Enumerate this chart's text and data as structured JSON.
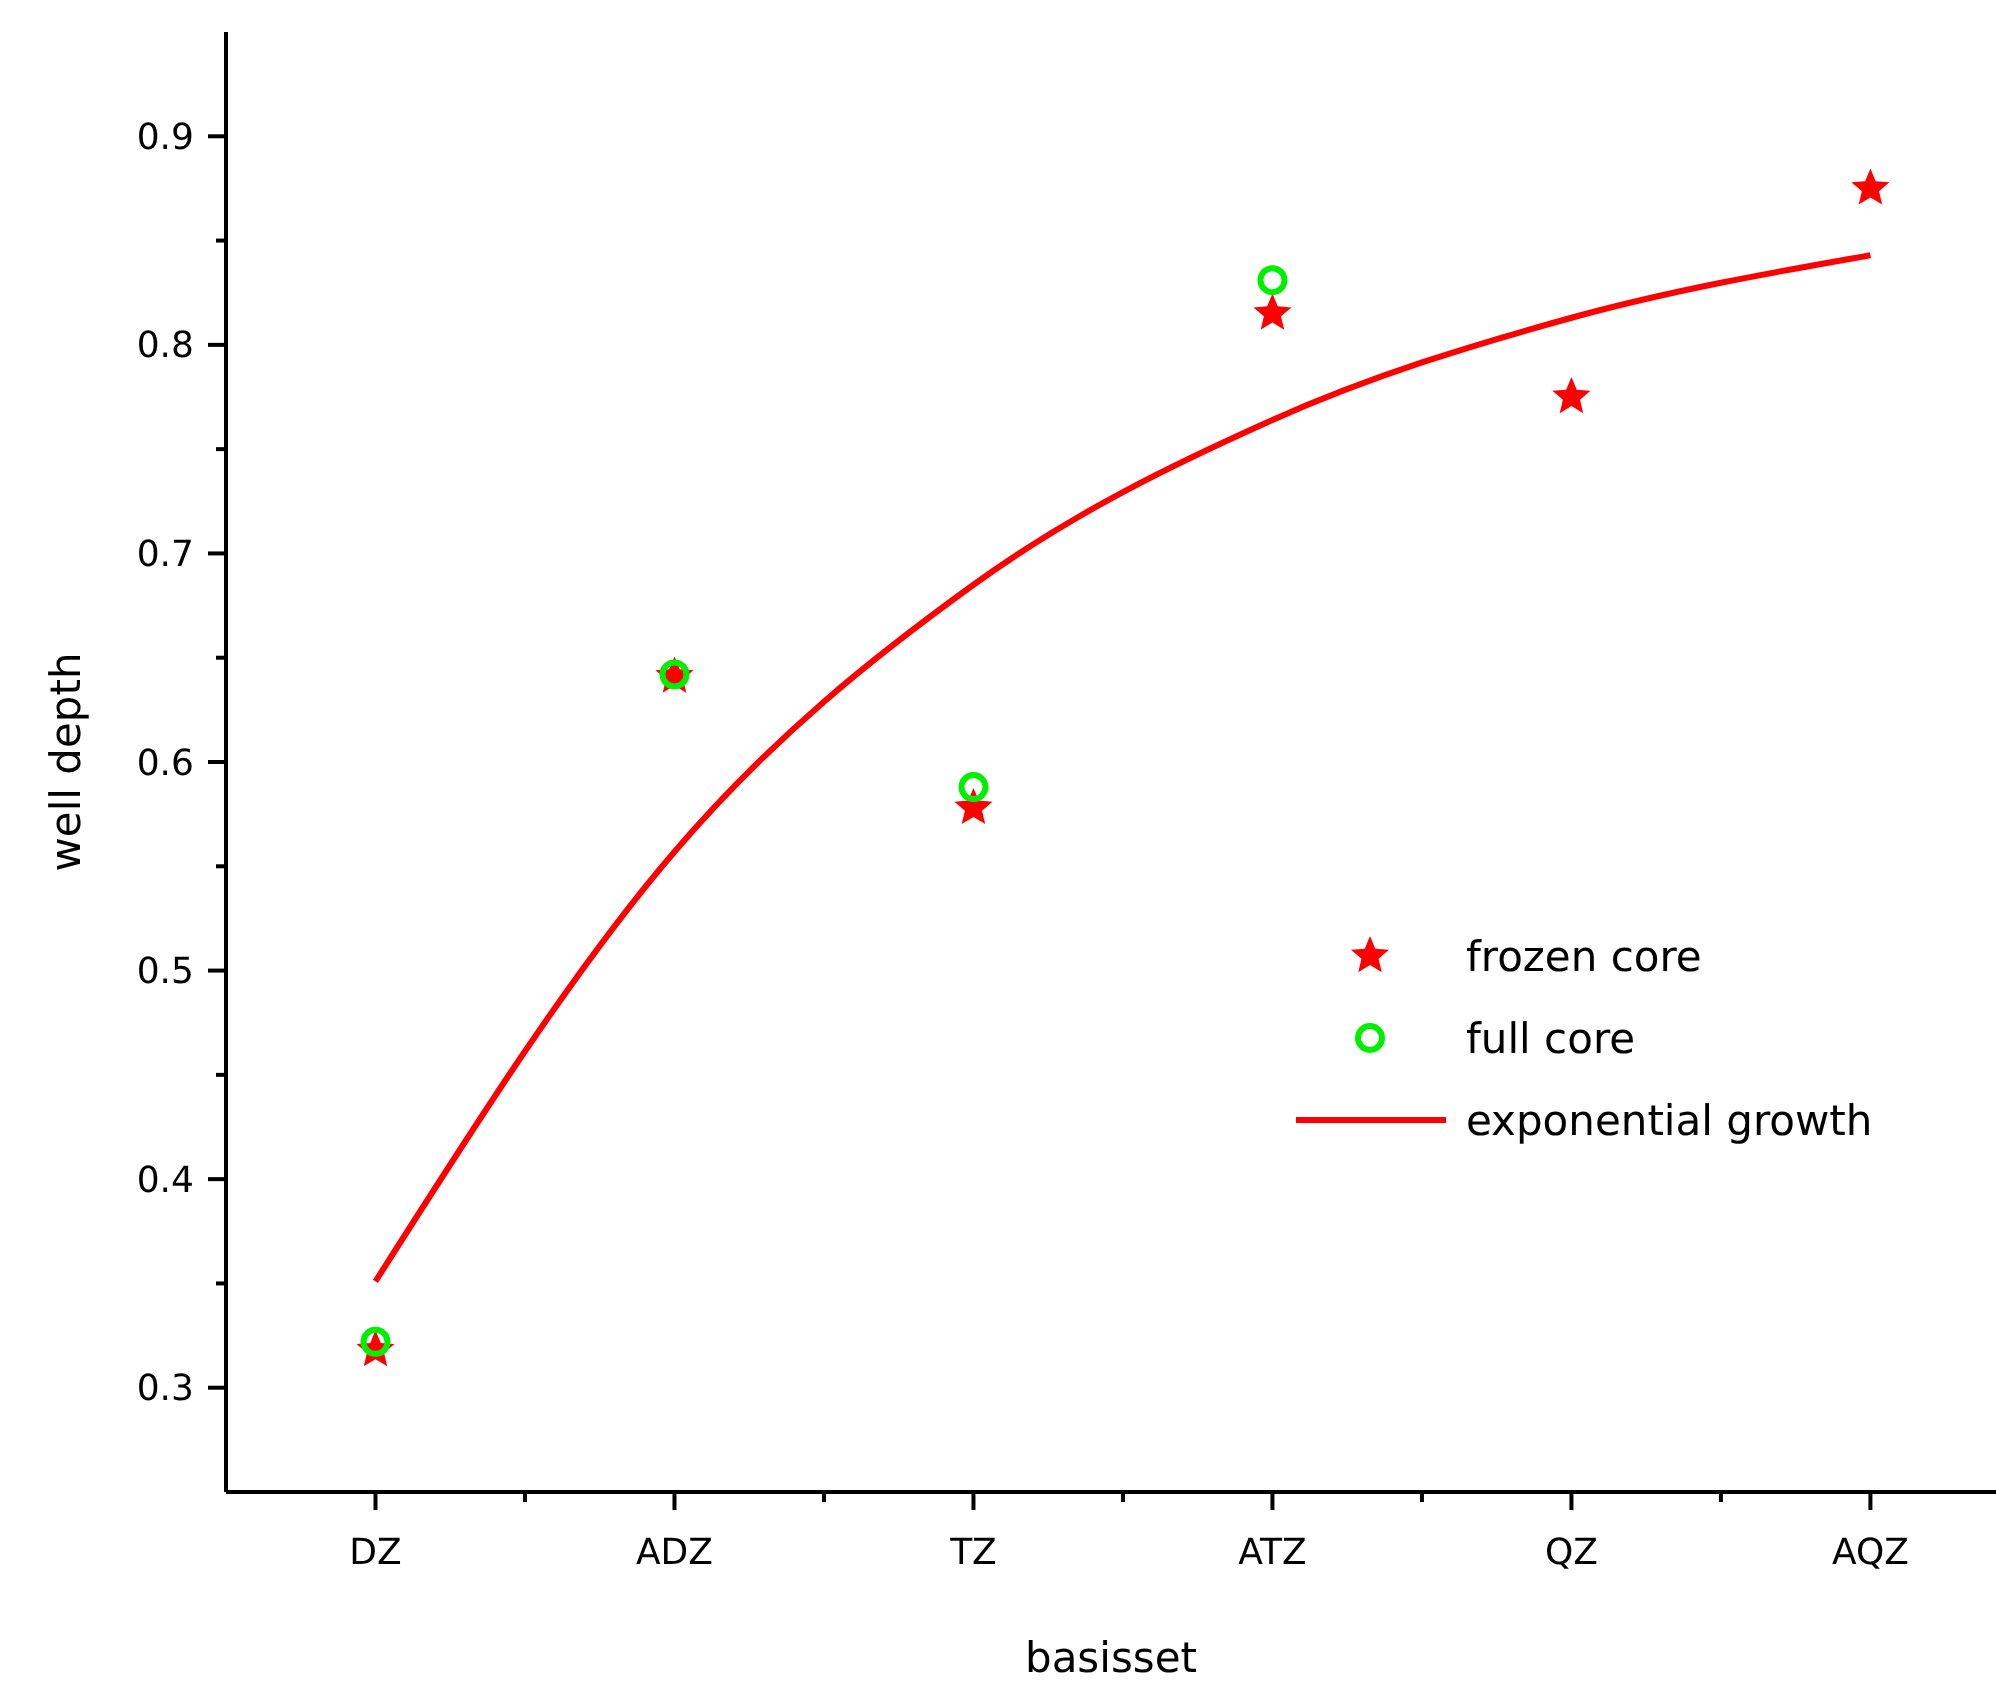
{
  "chart_data": {
    "type": "scatter",
    "xlabel": "basisset",
    "ylabel": "well depth",
    "categories": [
      "DZ",
      "ADZ",
      "TZ",
      "ATZ",
      "QZ",
      "AQZ"
    ],
    "ylim": [
      0.25,
      0.95
    ],
    "yticks": [
      0.3,
      {
        "value": 0.35,
        "label": null
      },
      0.4,
      {
        "value": 0.45,
        "label": null
      },
      0.5,
      {
        "value": 0.55,
        "label": null
      },
      0.6,
      {
        "value": 0.65,
        "label": null
      },
      0.7,
      {
        "value": 0.75,
        "label": null
      },
      0.8,
      {
        "value": 0.85,
        "label": null
      },
      0.9
    ],
    "grid": false,
    "legend": "right",
    "series": [
      {
        "name": "frozen core",
        "marker": "star",
        "color": "#ff0000",
        "values": [
          0.318,
          0.641,
          0.578,
          0.815,
          0.775,
          0.875
        ]
      },
      {
        "name": "full core",
        "marker": "circle",
        "color": "#00ee00",
        "values": [
          0.322,
          0.642,
          0.588,
          0.831,
          null,
          null
        ]
      },
      {
        "name": "exponential growth",
        "type": "line",
        "marker": "none",
        "line_style": "solid",
        "color": "#ff0000",
        "values": [
          0.351,
          0.557,
          0.685,
          0.764,
          0.813,
          0.843
        ]
      }
    ]
  }
}
